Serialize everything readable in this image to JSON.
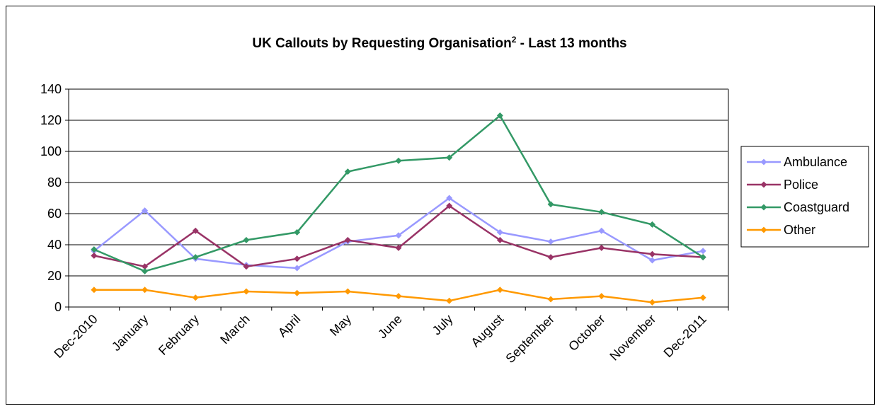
{
  "chart_data": {
    "type": "line",
    "title": "UK Callouts by Requesting Organisation",
    "title_superscript": "2",
    "title_suffix": " - Last 13 months",
    "xlabel": "",
    "ylabel": "",
    "ylim": [
      0,
      140
    ],
    "yticks": [
      0,
      20,
      40,
      60,
      80,
      100,
      120,
      140
    ],
    "grid": true,
    "legend_position": "right",
    "categories": [
      "Dec-2010",
      "January",
      "February",
      "March",
      "April",
      "May",
      "June",
      "July",
      "August",
      "September",
      "October",
      "November",
      "Dec-2011"
    ],
    "series": [
      {
        "name": "Ambulance",
        "color": "#9999ff",
        "values": [
          36,
          62,
          31,
          27,
          25,
          42,
          46,
          70,
          48,
          42,
          49,
          30,
          36
        ]
      },
      {
        "name": "Police",
        "color": "#993366",
        "values": [
          33,
          26,
          49,
          26,
          31,
          43,
          38,
          65,
          43,
          32,
          38,
          34,
          32
        ]
      },
      {
        "name": "Coastguard",
        "color": "#339966",
        "values": [
          37,
          23,
          32,
          43,
          48,
          87,
          94,
          96,
          123,
          66,
          61,
          53,
          32
        ]
      },
      {
        "name": "Other",
        "color": "#ff9900",
        "values": [
          11,
          11,
          6,
          10,
          9,
          10,
          7,
          4,
          11,
          5,
          7,
          3,
          6
        ]
      }
    ]
  }
}
